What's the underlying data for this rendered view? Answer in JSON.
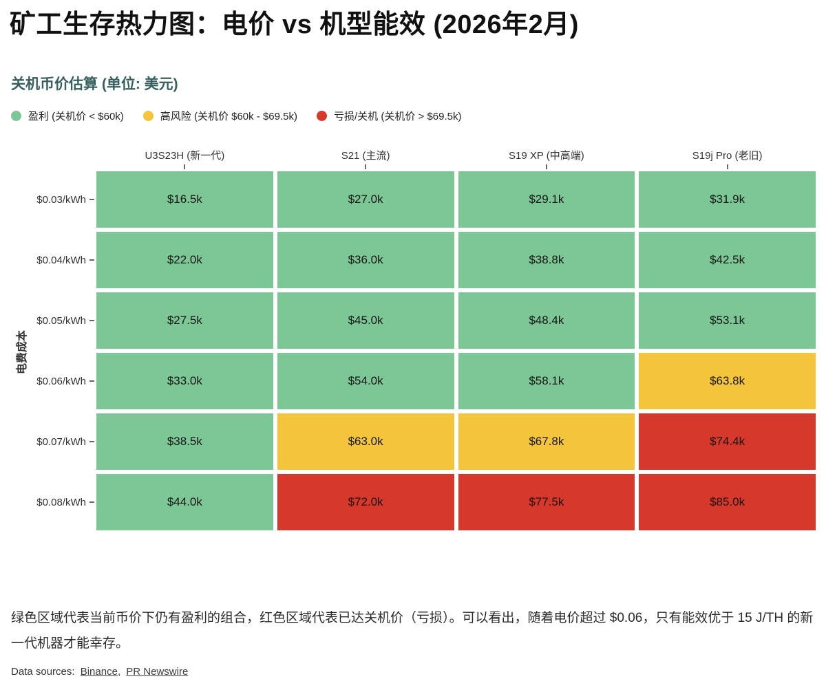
{
  "title": "矿工生存热力图：电价 vs 机型能效 (2026年2月)",
  "subtitle": "关机币价估算 (单位: 美元)",
  "colors": {
    "profit": "#7CC795",
    "risk": "#F4C53A",
    "loss": "#D6382C"
  },
  "legend": {
    "items": [
      {
        "label": "盈利 (关机价 < $60k)",
        "status": "profit"
      },
      {
        "label": "高风险 (关机价 $60k - $69.5k)",
        "status": "risk"
      },
      {
        "label": "亏损/关机 (关机价 > $69.5k)",
        "status": "loss"
      }
    ]
  },
  "chart_data": {
    "type": "heatmap",
    "title": "矿工生存热力图：电价 vs 机型能效 (2026年2月)",
    "subtitle": "关机币价估算 (单位: 美元)",
    "columns": [
      "U3S23H (新一代)",
      "S21 (主流)",
      "S19 XP (中高端)",
      "S19j Pro (老旧)"
    ],
    "rows": [
      "$0.03/kWh",
      "$0.04/kWh",
      "$0.05/kWh",
      "$0.06/kWh",
      "$0.07/kWh",
      "$0.08/kWh"
    ],
    "ylabel": "电费成本",
    "values_k_usd": [
      [
        16.5,
        27.0,
        29.1,
        31.9
      ],
      [
        22.0,
        36.0,
        38.8,
        42.5
      ],
      [
        27.5,
        45.0,
        48.4,
        53.1
      ],
      [
        33.0,
        54.0,
        58.1,
        63.8
      ],
      [
        38.5,
        63.0,
        67.8,
        74.4
      ],
      [
        44.0,
        72.0,
        77.5,
        85.0
      ]
    ],
    "cell_labels": [
      [
        "$16.5k",
        "$27.0k",
        "$29.1k",
        "$31.9k"
      ],
      [
        "$22.0k",
        "$36.0k",
        "$38.8k",
        "$42.5k"
      ],
      [
        "$27.5k",
        "$45.0k",
        "$48.4k",
        "$53.1k"
      ],
      [
        "$33.0k",
        "$54.0k",
        "$58.1k",
        "$63.8k"
      ],
      [
        "$38.5k",
        "$63.0k",
        "$67.8k",
        "$74.4k"
      ],
      [
        "$44.0k",
        "$72.0k",
        "$77.5k",
        "$85.0k"
      ]
    ],
    "cell_status": [
      [
        "profit",
        "profit",
        "profit",
        "profit"
      ],
      [
        "profit",
        "profit",
        "profit",
        "profit"
      ],
      [
        "profit",
        "profit",
        "profit",
        "profit"
      ],
      [
        "profit",
        "profit",
        "profit",
        "risk"
      ],
      [
        "profit",
        "risk",
        "risk",
        "loss"
      ],
      [
        "profit",
        "loss",
        "loss",
        "loss"
      ]
    ]
  },
  "footer": "绿色区域代表当前币价下仍有盈利的组合，红色区域代表已达关机价（亏损）。可以看出，随着电价超过 $0.06，只有能效优于 15 J/TH 的新一代机器才能幸存。",
  "sources": {
    "prefix": "Data sources:",
    "link1": "Binance",
    "separator": ",",
    "link2": "PR Newswire"
  }
}
